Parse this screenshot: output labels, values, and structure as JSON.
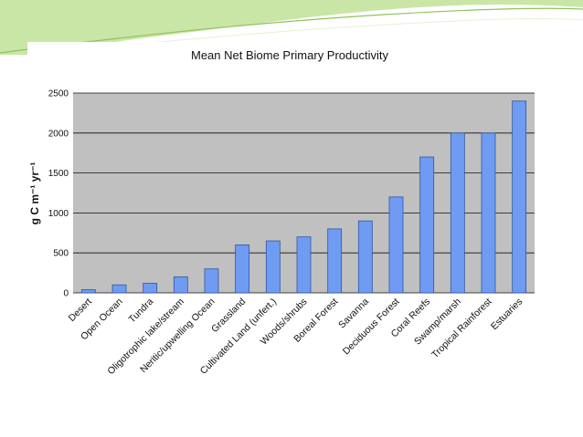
{
  "theme": {
    "slide_background": "#ffffff",
    "swoosh_colors": [
      "#c9e6a6",
      "#8fc25a",
      "#e3f1d2"
    ],
    "plot_background": "#c0c0c0",
    "bar_fill": "#6f9cf2",
    "bar_stroke": "#2f55a4",
    "gridline": "#111111"
  },
  "chart_data": {
    "type": "bar",
    "title": "Mean Net Biome Primary Productivity",
    "ylabel": "g C m⁻¹ yr⁻¹",
    "xlabel": "",
    "categories": [
      "Desert",
      "Open Ocean",
      "Tundra",
      "Oligotrophic lake/stream",
      "Neritic/upwelling Ocean",
      "Grassland",
      "Cultivated Land (unfert.)",
      "Woods/shrubs",
      "Boreal Forest",
      "Savanna",
      "Deciduous Forest",
      "Coral Reefs",
      "Swamp/marsh",
      "Tropical Rainforest",
      "Estuaries"
    ],
    "values": [
      40,
      100,
      120,
      200,
      300,
      600,
      650,
      700,
      800,
      900,
      1200,
      1700,
      2000,
      2000,
      2400
    ],
    "ylim": [
      0,
      2500
    ],
    "yticks": [
      "0",
      "500",
      "1000",
      "1500",
      "2000",
      "2500"
    ],
    "grid": true,
    "legend": "none"
  }
}
